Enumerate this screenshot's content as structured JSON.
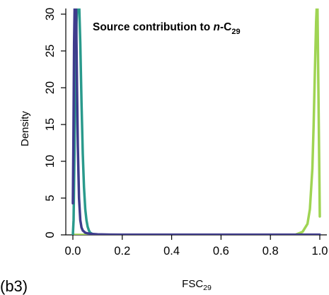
{
  "chart_data": {
    "type": "line",
    "panel_label": "(b3)",
    "title": {
      "prefix": "Source contribution to ",
      "italic": "n",
      "mid": "-C",
      "subscript": "29"
    },
    "xlabel": {
      "base": "FSC",
      "subscript": "29"
    },
    "ylabel": "Density",
    "xlim": [
      0,
      1
    ],
    "ylim": [
      0,
      30
    ],
    "x_ticks": [
      "0.0",
      "0.2",
      "0.4",
      "0.6",
      "0.8",
      "1.0"
    ],
    "y_ticks": [
      "0",
      "5",
      "10",
      "15",
      "20",
      "25",
      "30"
    ],
    "grid": false,
    "legend": "none",
    "baseline": {
      "y": 0,
      "color": "#bbbbbb"
    },
    "series": [
      {
        "color": "#9fd453",
        "x": [
          0.0,
          0.2,
          0.4,
          0.6,
          0.8,
          0.9,
          0.93,
          0.95,
          0.96,
          0.97,
          0.975,
          0.98,
          0.985,
          0.99,
          1.0
        ],
        "y": [
          0,
          0,
          0,
          0,
          0,
          0,
          0.4,
          1.5,
          3.5,
          9,
          15,
          22,
          29,
          33,
          2.5
        ]
      },
      {
        "color": "#2a9a8c",
        "x": [
          0.0,
          0.003,
          0.006,
          0.01,
          0.015,
          0.02,
          0.025,
          0.03,
          0.035,
          0.04,
          0.045,
          0.05,
          0.055,
          0.06,
          0.065,
          0.07,
          0.075,
          0.08,
          0.09,
          0.1,
          0.2,
          0.4,
          0.6,
          0.8,
          1.0
        ],
        "y": [
          0,
          2,
          10,
          20,
          29,
          33,
          32,
          26,
          18,
          11,
          6.5,
          3.5,
          2,
          1.1,
          0.6,
          0.3,
          0.2,
          0.1,
          0.05,
          0.02,
          0,
          0,
          0,
          0,
          0
        ]
      },
      {
        "color": "#3e3b8c",
        "x": [
          0.0,
          0.002,
          0.005,
          0.008,
          0.01,
          0.013,
          0.016,
          0.02,
          0.025,
          0.03,
          0.035,
          0.04,
          0.05,
          0.06,
          0.08,
          0.1,
          0.15,
          0.2,
          0.4,
          0.6,
          0.8,
          1.0
        ],
        "y": [
          4.3,
          12,
          26,
          33,
          33,
          31,
          22,
          12,
          5,
          2,
          1,
          0.6,
          0.3,
          0.2,
          0.12,
          0.08,
          0.04,
          0.03,
          0.02,
          0.02,
          0.02,
          0.02
        ]
      }
    ]
  }
}
